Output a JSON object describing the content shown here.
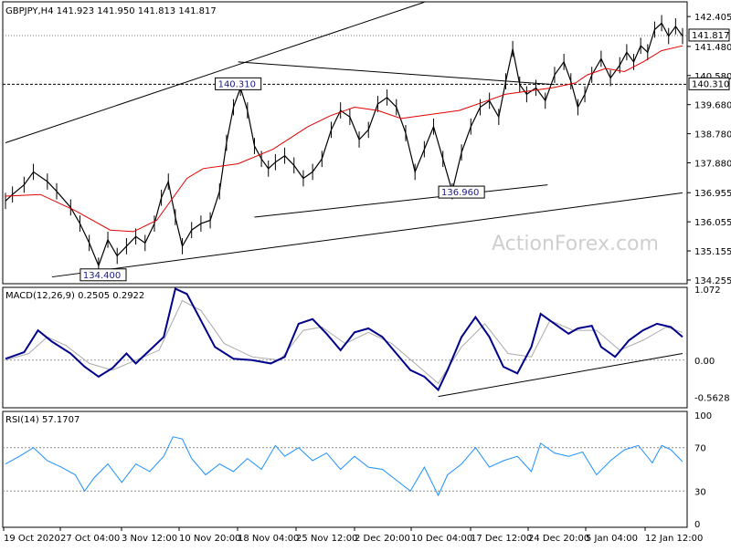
{
  "chart_data": {
    "type": "candlestick",
    "symbol": "GBPJPY,H4",
    "ohlc_header": "141.923 141.950 141.813 141.817",
    "watermark": "ActionForex.com",
    "price_axis": {
      "ticks": [
        "142.405",
        "141.480",
        "140.580",
        "139.680",
        "138.780",
        "137.880",
        "136.955",
        "136.055",
        "135.155",
        "134.255"
      ],
      "tick_values": [
        142.405,
        141.48,
        140.58,
        139.68,
        138.78,
        137.88,
        136.955,
        136.055,
        135.155,
        134.255
      ],
      "ylim": [
        134.14,
        142.86
      ]
    },
    "price_labels": {
      "last": "141.817",
      "level": "140.310"
    },
    "annotations": [
      "140.310",
      "136.960",
      "134.400"
    ],
    "x_labels": [
      "19 Oct 2020",
      "27 Oct 04:00",
      "3 Nov 12:00",
      "10 Nov 20:00",
      "18 Nov 04:00",
      "25 Nov 12:00",
      "2 Dec 20:00",
      "10 Dec 04:00",
      "17 Dec 12:00",
      "24 Dec 20:00",
      "5 Jan 04:00",
      "12 Jan 12:00"
    ],
    "price_path": [
      [
        0,
        136.7
      ],
      [
        3,
        136.9
      ],
      [
        8,
        137.2
      ],
      [
        12,
        137.6
      ],
      [
        18,
        137.3
      ],
      [
        22,
        137.0
      ],
      [
        28,
        136.5
      ],
      [
        32,
        136.0
      ],
      [
        36,
        135.4
      ],
      [
        40,
        134.7
      ],
      [
        44,
        135.5
      ],
      [
        48,
        135.0
      ],
      [
        52,
        135.3
      ],
      [
        56,
        135.6
      ],
      [
        60,
        135.4
      ],
      [
        64,
        136.0
      ],
      [
        67,
        136.8
      ],
      [
        70,
        137.3
      ],
      [
        73,
        136.2
      ],
      [
        76,
        135.3
      ],
      [
        80,
        135.8
      ],
      [
        84,
        136.0
      ],
      [
        88,
        136.1
      ],
      [
        92,
        137.0
      ],
      [
        95,
        138.5
      ],
      [
        98,
        139.6
      ],
      [
        101,
        140.2
      ],
      [
        104,
        139.5
      ],
      [
        107,
        138.4
      ],
      [
        110,
        138.0
      ],
      [
        113,
        137.7
      ],
      [
        116,
        137.9
      ],
      [
        120,
        138.1
      ],
      [
        124,
        137.8
      ],
      [
        128,
        137.4
      ],
      [
        132,
        137.6
      ],
      [
        136,
        138.0
      ],
      [
        140,
        138.9
      ],
      [
        144,
        139.5
      ],
      [
        148,
        139.3
      ],
      [
        152,
        138.6
      ],
      [
        156,
        138.9
      ],
      [
        160,
        139.7
      ],
      [
        164,
        139.9
      ],
      [
        168,
        139.6
      ],
      [
        172,
        138.8
      ],
      [
        176,
        137.6
      ],
      [
        180,
        138.3
      ],
      [
        184,
        139.0
      ],
      [
        188,
        138.0
      ],
      [
        192,
        137.0
      ],
      [
        196,
        138.2
      ],
      [
        200,
        139.0
      ],
      [
        204,
        139.6
      ],
      [
        208,
        139.8
      ],
      [
        212,
        139.3
      ],
      [
        215,
        140.4
      ],
      [
        218,
        141.4
      ],
      [
        221,
        140.3
      ],
      [
        224,
        140.0
      ],
      [
        228,
        140.2
      ],
      [
        232,
        139.8
      ],
      [
        236,
        140.6
      ],
      [
        240,
        141.0
      ],
      [
        243,
        140.4
      ],
      [
        246,
        139.6
      ],
      [
        249,
        140.0
      ],
      [
        252,
        140.6
      ],
      [
        256,
        141.1
      ],
      [
        260,
        140.5
      ],
      [
        264,
        140.9
      ],
      [
        267,
        141.3
      ],
      [
        270,
        141.0
      ],
      [
        273,
        141.5
      ],
      [
        276,
        141.3
      ],
      [
        279,
        142.0
      ],
      [
        282,
        142.2
      ],
      [
        285,
        141.8
      ],
      [
        288,
        142.1
      ],
      [
        291,
        141.8
      ]
    ],
    "ma_path": [
      [
        0,
        136.85
      ],
      [
        15,
        136.9
      ],
      [
        30,
        136.4
      ],
      [
        45,
        135.8
      ],
      [
        55,
        135.75
      ],
      [
        65,
        136.1
      ],
      [
        78,
        137.4
      ],
      [
        85,
        137.7
      ],
      [
        100,
        137.85
      ],
      [
        115,
        138.3
      ],
      [
        130,
        139.0
      ],
      [
        140,
        139.35
      ],
      [
        150,
        139.6
      ],
      [
        160,
        139.5
      ],
      [
        170,
        139.25
      ],
      [
        180,
        139.35
      ],
      [
        195,
        139.5
      ],
      [
        205,
        139.75
      ],
      [
        215,
        140.0
      ],
      [
        225,
        140.1
      ],
      [
        235,
        140.2
      ],
      [
        245,
        140.35
      ],
      [
        250,
        140.6
      ],
      [
        258,
        140.8
      ],
      [
        266,
        140.7
      ],
      [
        274,
        141.0
      ],
      [
        282,
        141.35
      ],
      [
        291,
        141.5
      ]
    ],
    "trendlines": [
      {
        "name": "upper-channel",
        "points": [
          [
            0,
            138.5
          ],
          [
            180,
            142.85
          ]
        ]
      },
      {
        "name": "upper-resistance",
        "points": [
          [
            100,
            141.0
          ],
          [
            236,
            140.3
          ]
        ]
      },
      {
        "name": "lower-support",
        "points": [
          [
            107,
            136.2
          ],
          [
            233,
            137.2
          ]
        ]
      },
      {
        "name": "lower-channel",
        "points": [
          [
            20,
            134.35
          ],
          [
            291,
            136.95
          ]
        ]
      }
    ],
    "macd": {
      "label": "MACD(12,26,9) 0.2505 0.2922",
      "ticks": [
        "1.072",
        "0.00",
        "-0.5628"
      ],
      "tick_values": [
        1.072,
        0.0,
        -0.5628
      ],
      "ylim": [
        -0.72,
        1.1
      ],
      "trendline": [
        [
          186,
          -0.55
        ],
        [
          291,
          0.1
        ]
      ],
      "macd_path": [
        [
          0,
          0.02
        ],
        [
          8,
          0.12
        ],
        [
          14,
          0.45
        ],
        [
          20,
          0.28
        ],
        [
          28,
          0.1
        ],
        [
          34,
          -0.1
        ],
        [
          40,
          -0.25
        ],
        [
          46,
          -0.12
        ],
        [
          52,
          0.1
        ],
        [
          56,
          -0.05
        ],
        [
          62,
          0.15
        ],
        [
          68,
          0.35
        ],
        [
          73,
          1.08
        ],
        [
          78,
          1.0
        ],
        [
          84,
          0.6
        ],
        [
          90,
          0.2
        ],
        [
          98,
          0.02
        ],
        [
          106,
          0.0
        ],
        [
          114,
          -0.05
        ],
        [
          120,
          0.05
        ],
        [
          126,
          0.55
        ],
        [
          132,
          0.62
        ],
        [
          138,
          0.4
        ],
        [
          144,
          0.15
        ],
        [
          150,
          0.42
        ],
        [
          156,
          0.48
        ],
        [
          162,
          0.35
        ],
        [
          168,
          0.1
        ],
        [
          174,
          -0.15
        ],
        [
          180,
          -0.25
        ],
        [
          186,
          -0.45
        ],
        [
          190,
          -0.15
        ],
        [
          196,
          0.35
        ],
        [
          202,
          0.65
        ],
        [
          208,
          0.35
        ],
        [
          214,
          -0.1
        ],
        [
          220,
          -0.2
        ],
        [
          226,
          0.2
        ],
        [
          230,
          0.7
        ],
        [
          236,
          0.55
        ],
        [
          242,
          0.4
        ],
        [
          246,
          0.48
        ],
        [
          252,
          0.52
        ],
        [
          256,
          0.2
        ],
        [
          262,
          0.05
        ],
        [
          268,
          0.3
        ],
        [
          274,
          0.45
        ],
        [
          280,
          0.55
        ],
        [
          286,
          0.5
        ],
        [
          291,
          0.35
        ]
      ],
      "signal_path": [
        [
          0,
          0.0
        ],
        [
          10,
          0.1
        ],
        [
          18,
          0.35
        ],
        [
          26,
          0.22
        ],
        [
          36,
          -0.05
        ],
        [
          46,
          -0.15
        ],
        [
          56,
          0.0
        ],
        [
          66,
          0.15
        ],
        [
          76,
          0.9
        ],
        [
          84,
          0.75
        ],
        [
          94,
          0.25
        ],
        [
          106,
          0.05
        ],
        [
          118,
          0.0
        ],
        [
          128,
          0.45
        ],
        [
          136,
          0.5
        ],
        [
          146,
          0.25
        ],
        [
          156,
          0.42
        ],
        [
          166,
          0.25
        ],
        [
          176,
          -0.05
        ],
        [
          186,
          -0.35
        ],
        [
          196,
          0.2
        ],
        [
          206,
          0.55
        ],
        [
          216,
          0.1
        ],
        [
          226,
          0.05
        ],
        [
          234,
          0.6
        ],
        [
          244,
          0.45
        ],
        [
          254,
          0.45
        ],
        [
          264,
          0.15
        ],
        [
          274,
          0.3
        ],
        [
          284,
          0.5
        ],
        [
          291,
          0.42
        ]
      ]
    },
    "rsi": {
      "label": "RSI(14) 57.1707",
      "ticks": [
        "100",
        "70",
        "30",
        "0"
      ],
      "tick_values": [
        100,
        70,
        30,
        0
      ],
      "ylim": [
        0,
        100
      ],
      "path": [
        [
          0,
          55
        ],
        [
          6,
          62
        ],
        [
          12,
          70
        ],
        [
          18,
          58
        ],
        [
          24,
          52
        ],
        [
          30,
          45
        ],
        [
          34,
          30
        ],
        [
          38,
          42
        ],
        [
          44,
          55
        ],
        [
          50,
          38
        ],
        [
          56,
          55
        ],
        [
          62,
          48
        ],
        [
          68,
          62
        ],
        [
          72,
          80
        ],
        [
          76,
          78
        ],
        [
          80,
          60
        ],
        [
          86,
          45
        ],
        [
          92,
          55
        ],
        [
          98,
          48
        ],
        [
          104,
          60
        ],
        [
          110,
          50
        ],
        [
          116,
          72
        ],
        [
          120,
          62
        ],
        [
          126,
          70
        ],
        [
          132,
          58
        ],
        [
          138,
          65
        ],
        [
          144,
          50
        ],
        [
          150,
          62
        ],
        [
          156,
          52
        ],
        [
          162,
          50
        ],
        [
          168,
          40
        ],
        [
          174,
          30
        ],
        [
          180,
          52
        ],
        [
          186,
          26
        ],
        [
          190,
          45
        ],
        [
          196,
          55
        ],
        [
          202,
          70
        ],
        [
          208,
          52
        ],
        [
          214,
          58
        ],
        [
          220,
          62
        ],
        [
          226,
          48
        ],
        [
          230,
          74
        ],
        [
          236,
          65
        ],
        [
          242,
          62
        ],
        [
          248,
          66
        ],
        [
          254,
          45
        ],
        [
          260,
          58
        ],
        [
          266,
          68
        ],
        [
          272,
          72
        ],
        [
          278,
          56
        ],
        [
          282,
          72
        ],
        [
          286,
          68
        ],
        [
          291,
          57
        ]
      ]
    }
  }
}
